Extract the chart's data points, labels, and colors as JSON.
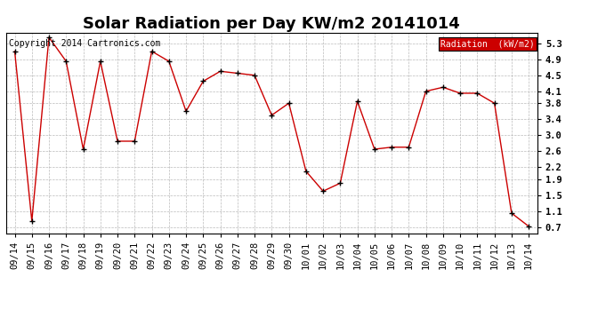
{
  "title": "Solar Radiation per Day KW/m2 20141014",
  "copyright": "Copyright 2014 Cartronics.com",
  "legend_label": "Radiation  (kW/m2)",
  "x_labels": [
    "09/14",
    "09/15",
    "09/16",
    "09/17",
    "09/18",
    "09/19",
    "09/20",
    "09/21",
    "09/22",
    "09/23",
    "09/24",
    "09/25",
    "09/26",
    "09/27",
    "09/28",
    "09/29",
    "09/30",
    "10/01",
    "10/02",
    "10/03",
    "10/04",
    "10/05",
    "10/06",
    "10/07",
    "10/08",
    "10/09",
    "10/10",
    "10/11",
    "10/12",
    "10/13",
    "10/14"
  ],
  "y_values": [
    5.1,
    0.85,
    5.45,
    4.85,
    2.65,
    4.85,
    2.85,
    2.85,
    5.1,
    4.85,
    3.6,
    4.35,
    4.6,
    4.55,
    4.5,
    3.5,
    3.8,
    2.1,
    1.6,
    1.8,
    3.85,
    2.65,
    2.7,
    2.7,
    4.1,
    4.2,
    4.05,
    4.05,
    3.8,
    1.05,
    0.72
  ],
  "y_ticks": [
    0.7,
    1.1,
    1.5,
    1.9,
    2.2,
    2.6,
    3.0,
    3.4,
    3.8,
    4.1,
    4.5,
    4.9,
    5.3
  ],
  "ylim": [
    0.55,
    5.55
  ],
  "line_color": "#cc0000",
  "marker_color": "#000000",
  "bg_color": "#ffffff",
  "grid_color": "#aaaaaa",
  "legend_bg": "#cc0000",
  "legend_text_color": "#ffffff",
  "title_fontsize": 13,
  "tick_fontsize": 7.5,
  "copyright_fontsize": 7
}
